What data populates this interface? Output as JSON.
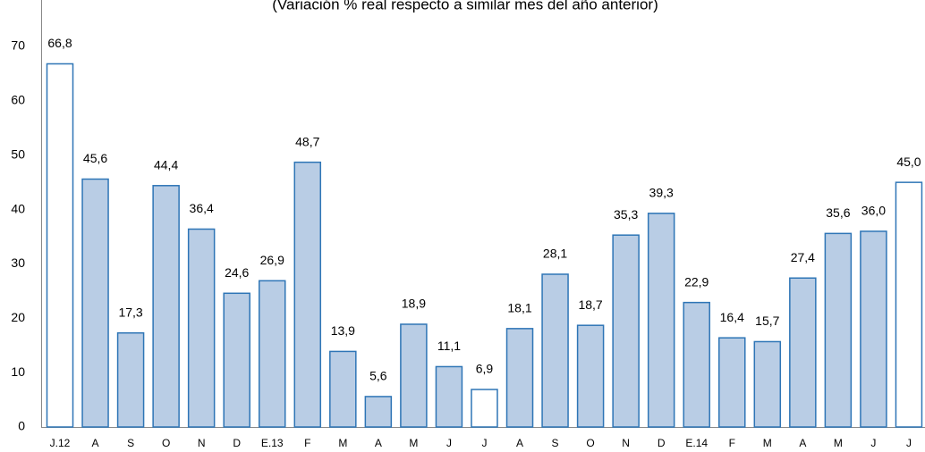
{
  "chart_data": {
    "type": "bar",
    "title": "(Variación % real respecto a similar mes del año anterior)",
    "categories": [
      "J.12",
      "A",
      "S",
      "O",
      "N",
      "D",
      "E.13",
      "F",
      "M",
      "A",
      "M",
      "J",
      "J",
      "A",
      "S",
      "O",
      "N",
      "D",
      "E.14",
      "F",
      "M",
      "A",
      "M",
      "J",
      "J"
    ],
    "values": [
      66.8,
      45.6,
      17.3,
      44.4,
      36.4,
      24.6,
      26.9,
      48.7,
      13.9,
      5.6,
      18.9,
      11.1,
      6.9,
      18.1,
      28.1,
      18.7,
      35.3,
      39.3,
      22.9,
      16.4,
      15.7,
      27.4,
      35.6,
      36.0,
      45.0
    ],
    "value_labels": [
      "66,8",
      "45,6",
      "17,3",
      "44,4",
      "36,4",
      "24,6",
      "26,9",
      "48,7",
      "13,9",
      "5,6",
      "18,9",
      "11,1",
      "6,9",
      "18,1",
      "28,1",
      "18,7",
      "35,3",
      "39,3",
      "22,9",
      "16,4",
      "15,7",
      "27,4",
      "35,6",
      "36,0",
      "45,0"
    ],
    "colors": [
      "#ffffff",
      "#b9cde5",
      "#b9cde5",
      "#b9cde5",
      "#b9cde5",
      "#b9cde5",
      "#b9cde5",
      "#b9cde5",
      "#b9cde5",
      "#b9cde5",
      "#b9cde5",
      "#b9cde5",
      "#ffffff",
      "#b9cde5",
      "#b9cde5",
      "#b9cde5",
      "#b9cde5",
      "#b9cde5",
      "#b9cde5",
      "#b9cde5",
      "#b9cde5",
      "#b9cde5",
      "#b9cde5",
      "#b9cde5",
      "#ffffff"
    ],
    "edge_color": "#2e75b6",
    "ylim": [
      0,
      70
    ],
    "yticks": [
      0,
      10,
      20,
      30,
      40,
      50,
      60,
      70
    ],
    "grid": false
  }
}
